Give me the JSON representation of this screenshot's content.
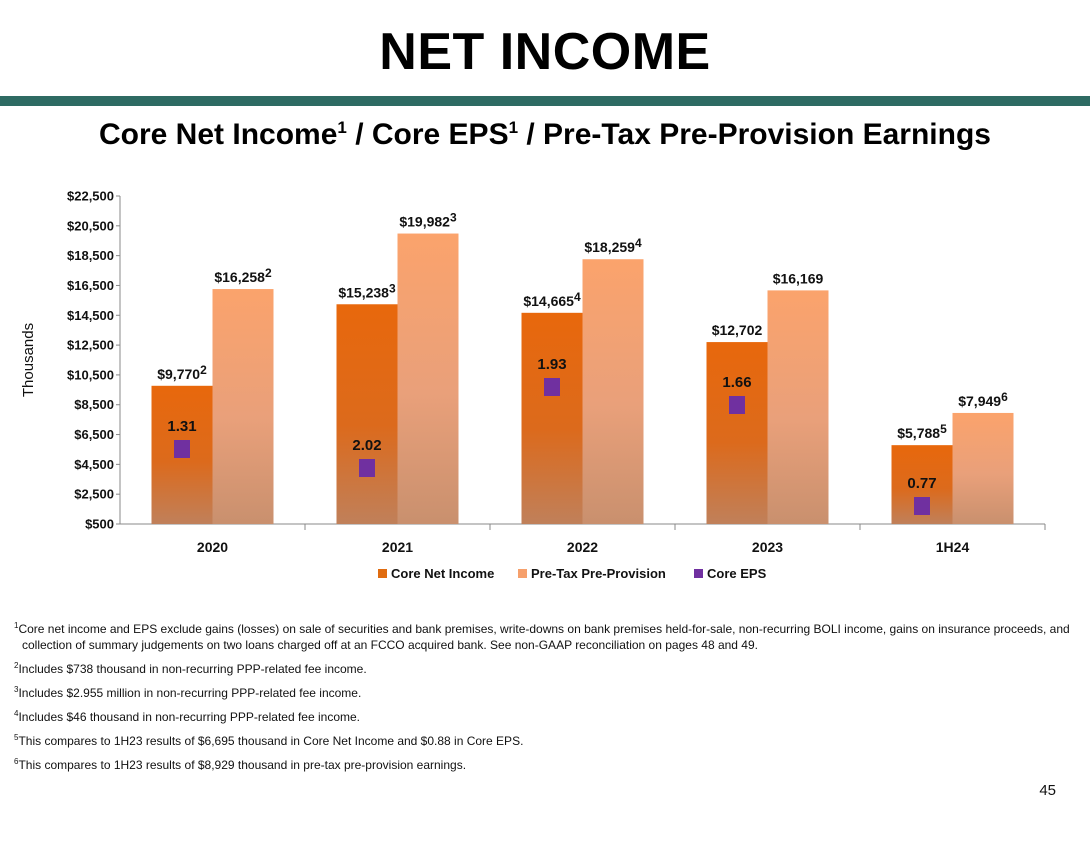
{
  "slide": {
    "title": "NET INCOME",
    "subtitle": {
      "part1": "Core Net Income",
      "sup1": "1",
      "part2": " / Core EPS",
      "sup2": "1",
      "part3": " /  Pre-Tax Pre-Provision Earnings"
    },
    "page_number": "45",
    "colors": {
      "rule": "#2e6b63",
      "core_net_income": "#e06c10",
      "pretax": "#f6a06c",
      "eps": "#7030a0"
    }
  },
  "chart_data": {
    "type": "bar",
    "ylabel": "Thousands",
    "ylim": [
      500,
      22500
    ],
    "yticks": [
      "$22,500",
      "$20,500",
      "$18,500",
      "$16,500",
      "$14,500",
      "$12,500",
      "$10,500",
      "$8,500",
      "$6,500",
      "$4,500",
      "$2,500",
      "$500"
    ],
    "ytick_values": [
      22500,
      20500,
      18500,
      16500,
      14500,
      12500,
      10500,
      8500,
      6500,
      4500,
      2500,
      500
    ],
    "categories": [
      "2020",
      "2021",
      "2022",
      "2023",
      "1H24"
    ],
    "series": [
      {
        "name": "Core Net Income",
        "values": [
          9770,
          15238,
          14665,
          12702,
          5788
        ],
        "labels": [
          "$9,770",
          "$15,238",
          "$14,665",
          "$12,702",
          "$5,788"
        ],
        "footnotes": [
          "2",
          "3",
          "4",
          "",
          "5"
        ]
      },
      {
        "name": "Pre-Tax Pre-Provision",
        "values": [
          16258,
          19982,
          18259,
          16169,
          7949
        ],
        "labels": [
          "$16,258",
          "$19,982",
          "$18,259",
          "$16,169",
          "$7,949"
        ],
        "footnotes": [
          "2",
          "3",
          "4",
          "",
          "6"
        ]
      },
      {
        "name": "Core EPS",
        "type": "scatter",
        "values": [
          1.31,
          2.02,
          1.93,
          1.66,
          0.77
        ],
        "labels": [
          "1.31",
          "2.02",
          "1.93",
          "1.66",
          "0.77"
        ]
      }
    ],
    "legend": [
      "Core Net Income",
      "Pre-Tax Pre-Provision",
      "Core EPS"
    ],
    "legend_position": "bottom"
  },
  "footnotes": [
    {
      "num": "1",
      "text": "Core net income and EPS exclude gains (losses) on sale of securities and bank premises, write-downs on bank premises held-for-sale, non-recurring BOLI income, gains on insurance proceeds, and collection of summary judgements on two loans charged off at an FCCO acquired bank. See non-GAAP reconciliation on pages 48 and 49."
    },
    {
      "num": "2",
      "text": "Includes $738 thousand in non-recurring PPP-related fee income."
    },
    {
      "num": "3",
      "text": "Includes $2.955 million in non-recurring PPP-related fee income."
    },
    {
      "num": "4",
      "text": "Includes $46 thousand in non-recurring PPP-related fee income."
    },
    {
      "num": "5",
      "text": "This compares to 1H23 results of $6,695 thousand in Core Net Income and $0.88 in Core EPS."
    },
    {
      "num": "6",
      "text": "This compares to 1H23 results of $8,929 thousand in pre-tax pre-provision earnings."
    }
  ]
}
